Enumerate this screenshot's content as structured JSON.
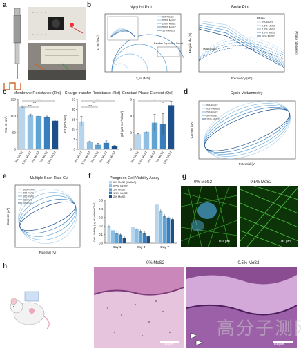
{
  "labels": {
    "a": "a",
    "b": "b",
    "c": "c",
    "d": "d",
    "e": "e",
    "f": "f",
    "g": "g",
    "h": "h"
  },
  "panel_b": {
    "nyquist_title": "Nyquist Plot",
    "nyquist_xlabel": "Z_re (MΩ)",
    "nyquist_ylabel": "Z_im (MΩ)",
    "nyquist_inset_label": "Randles Equivalent Circuit",
    "nyquist_legend": [
      "0% MoS2",
      "0.5% MoS2",
      "2.0% MoS2",
      "5.0% MoS2",
      "10% MoS2"
    ],
    "bode_title": "Bode Plot",
    "bode_xlabel": "Frequency (Hz)",
    "bode_ylabel": "Magnitude (Ω)",
    "bode_ylabel2": "Phase (degrees)",
    "bode_phase_label": "Phase",
    "bode_mag_label": "Magnitude",
    "bode_legend": [
      "0% MoS2",
      "0.5% MoS2",
      "2.0% MoS2",
      "5.0% MoS2",
      "10% MoS2"
    ]
  },
  "panel_c": {
    "titles": [
      "Membrane Resistance (Rm)",
      "Charge-transfer Resistance (Rct)",
      "Constant Phase Element (Qdl)"
    ],
    "ylabels": [
      "Rm (Ω cm²)",
      "Rct (MΩ cm²)",
      "Qdl (μS sec^n/cm²)"
    ],
    "categories": [
      "0% MoS2",
      "0.5% MoS2",
      "2% MoS2",
      "5% MoS2",
      "10% MoS2"
    ],
    "sig": [
      "****",
      "***",
      "****",
      "***",
      "**",
      "*"
    ]
  },
  "panel_d": {
    "title": "Cyclic Voltammetry",
    "xlabel": "Potential (V)",
    "ylabel": "Current (μA)",
    "legend": [
      "0% MoS2",
      "0.5% MoS2",
      "2% MoS2",
      "5% MoS2",
      "10% MoS2"
    ]
  },
  "panel_e": {
    "title": "Multiple Scan Rate CV",
    "xlabel": "Potential (V)",
    "ylabel": "Current (μA)",
    "legend": [
      "1000 mV/s",
      "200 mV/s",
      "100 mV/s",
      "50 mV/s",
      "10 mV/s"
    ]
  },
  "panel_f": {
    "title": "Picogreen Cell Viability Assay",
    "ylabel": "Cell Viability (μg of cellular DNA)",
    "categories": [
      "Day 1",
      "Day 3",
      "Day 7"
    ],
    "legend": [
      "0% MoS2 (GelMA)",
      "0.5% MoS2",
      "1% MoS2",
      "1.5% MoS2",
      "2% MoS2"
    ],
    "sig": [
      "***",
      "**",
      "*",
      "***",
      "**",
      "*"
    ]
  },
  "panel_g": {
    "labels": [
      "0% MoS2",
      "0.5% MoS2"
    ],
    "scale": "100 μm"
  },
  "panel_h": {
    "labels": [
      "0% MoS2",
      "0.5% MoS2"
    ],
    "scale": "100μm"
  },
  "watermark": "高分子测网",
  "chart_data": [
    {
      "type": "bar",
      "title": "Membrane Resistance (Rm)",
      "categories": [
        "0% MoS2",
        "0.5% MoS2",
        "2% MoS2",
        "5% MoS2",
        "10% MoS2"
      ],
      "values": [
        128,
        102,
        100,
        97,
        86
      ],
      "errors": [
        3,
        4,
        3,
        3,
        3
      ],
      "ylim": [
        0,
        150
      ],
      "yticks": [
        0,
        50,
        100,
        150
      ],
      "ylabel": "Rm (Ω cm²)"
    },
    {
      "type": "bar",
      "title": "Charge-transfer Resistance (Rct)",
      "categories": [
        "0% MoS2",
        "0.5% MoS2",
        "2% MoS2",
        "5% MoS2",
        "10% MoS2"
      ],
      "values": [
        14,
        3.8,
        2.2,
        3.2,
        1.5
      ],
      "errors": [
        2.5,
        0.3,
        0.8,
        1.0,
        0.4
      ],
      "ylim": [
        0,
        25
      ],
      "yticks": [
        0,
        5,
        10,
        15,
        20,
        25
      ],
      "ylabel": "Rct (MΩ cm²)"
    },
    {
      "type": "bar",
      "title": "Constant Phase Element (Qdl)",
      "categories": [
        "0% MoS2",
        "0.5% MoS2",
        "2% MoS2",
        "5% MoS2",
        "10% MoS2"
      ],
      "values": [
        1.8,
        2.1,
        3.2,
        3.0,
        5.3
      ],
      "errors": [
        0.1,
        0.1,
        1.0,
        1.3,
        0.5
      ],
      "ylim": [
        0,
        6
      ],
      "yticks": [
        0,
        2,
        4,
        6
      ],
      "ylabel": "Qdl (μS sec^n/cm²)"
    },
    {
      "type": "bar",
      "title": "Picogreen Cell Viability Assay",
      "categories": [
        "Day 1",
        "Day 3",
        "Day 7"
      ],
      "series": [
        {
          "name": "0% MoS2 (GelMA)",
          "values": [
            0.2,
            0.19,
            0.45
          ]
        },
        {
          "name": "0.5% MoS2",
          "values": [
            0.15,
            0.17,
            0.38
          ]
        },
        {
          "name": "1% MoS2",
          "values": [
            0.12,
            0.14,
            0.32
          ]
        },
        {
          "name": "1.5% MoS2",
          "values": [
            0.1,
            0.12,
            0.3
          ]
        },
        {
          "name": "2% MoS2",
          "values": [
            0.06,
            0.08,
            0.28
          ]
        }
      ],
      "ylim": [
        0,
        0.5
      ],
      "yticks": [
        0,
        0.1,
        0.2,
        0.3,
        0.4,
        0.5
      ]
    }
  ],
  "colors": {
    "c0": "#b7d5ec",
    "c1": "#8ebfe3",
    "c2": "#5fa3d3",
    "c3": "#3a7fbd",
    "c4": "#1d4f8a"
  }
}
